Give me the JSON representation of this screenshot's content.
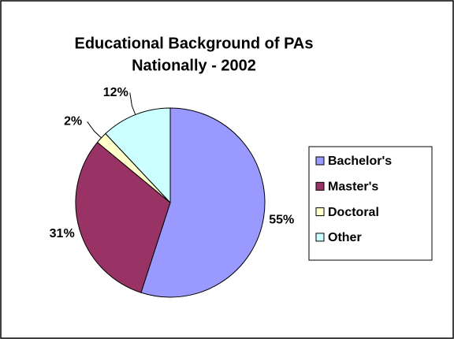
{
  "chart_data": {
    "type": "pie",
    "title": [
      "Educational Background of PAs",
      "Nationally - 2002"
    ],
    "categories": [
      "Bachelor's",
      "Master's",
      "Doctoral",
      "Other"
    ],
    "values": [
      55,
      31,
      2,
      12
    ],
    "value_labels": [
      "55%",
      "31%",
      "2%",
      "12%"
    ],
    "colors": [
      "#9999ff",
      "#993366",
      "#ffffcc",
      "#ccffff"
    ],
    "legend": "right"
  }
}
